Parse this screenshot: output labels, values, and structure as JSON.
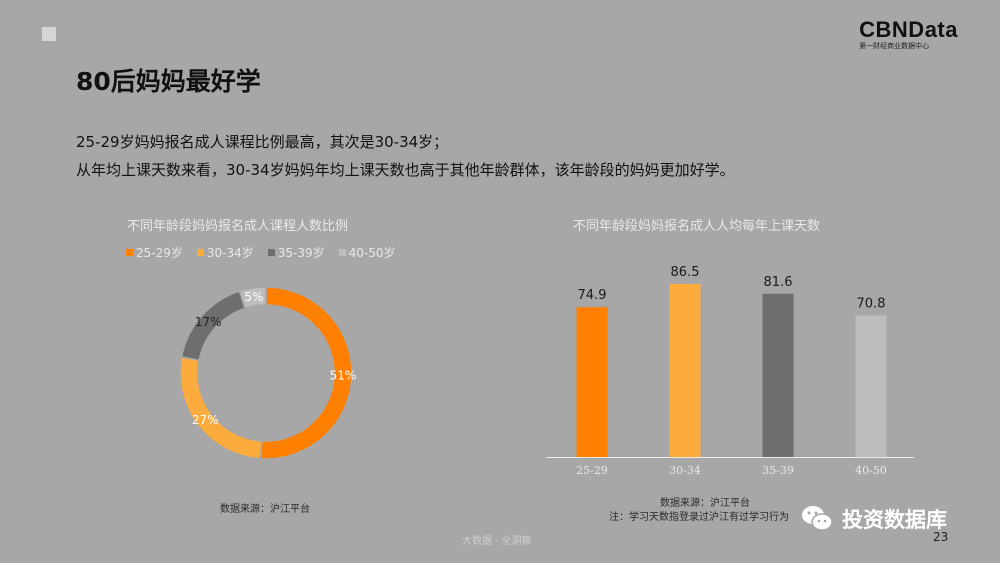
{
  "logo": {
    "main": "CBNData",
    "sub": "第一财经商业数据中心"
  },
  "slide": {
    "title": "80后妈妈最好学",
    "desc_line1": "25-29岁妈妈报名成人课程比例最高，其次是30-34岁；",
    "desc_line2": "从年均上课天数来看，30-34岁妈妈年均上课天数也高于其他年龄群体，该年龄段的妈妈更加好学。"
  },
  "colors": {
    "c1": "#ff8000",
    "c2": "#fcab3d",
    "c3": "#6e6e70",
    "c4": "#bdbdbf"
  },
  "chart_data": [
    {
      "type": "pie",
      "title": "不同年龄段妈妈报名成人课程人数比例",
      "legend_placement": "top",
      "categories": [
        "25-29岁",
        "30-34岁",
        "35-39岁",
        "40-50岁"
      ],
      "values": [
        51,
        27,
        17,
        5
      ],
      "value_labels": [
        "51%",
        "27%",
        "17%",
        "5%"
      ],
      "source": "数据来源：沪江平台"
    },
    {
      "type": "bar",
      "title": "不同年龄段妈妈报名成人人均每年上课天数",
      "categories": [
        "25-29",
        "30-34",
        "35-39",
        "40-50"
      ],
      "values": [
        74.9,
        86.5,
        81.6,
        70.8
      ],
      "value_labels": [
        "74.9",
        "86.5",
        "81.6",
        "70.8"
      ],
      "ylim": [
        0,
        100
      ],
      "source": "数据来源：沪江平台",
      "note": "注：学习天数指登录过沪江有过学习行为"
    }
  ],
  "footer": {
    "center": "大数据 · 全洞察",
    "page": "23"
  },
  "watermark": {
    "icon": "wechat-icon",
    "text": "投资数据库"
  }
}
